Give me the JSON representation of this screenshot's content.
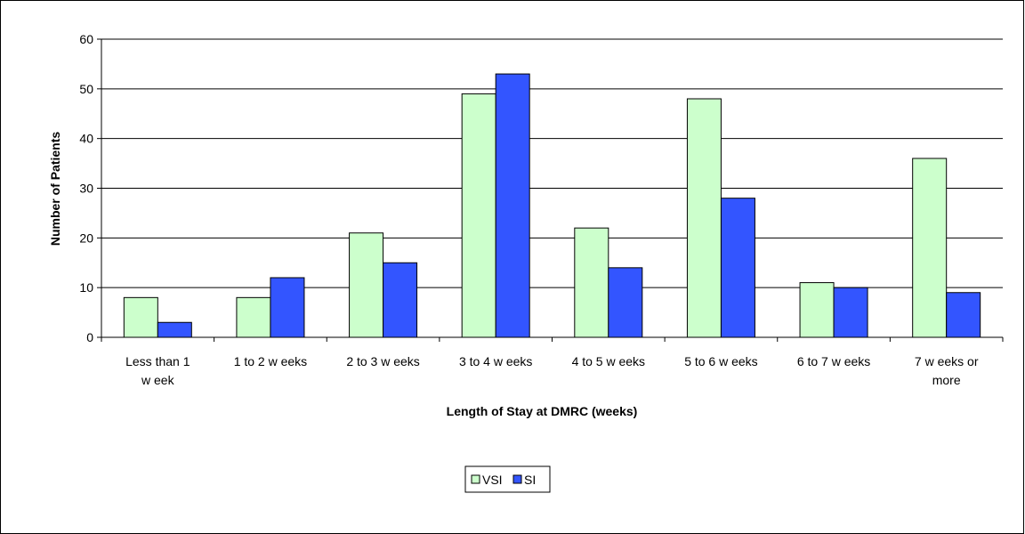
{
  "chart_data": {
    "type": "bar",
    "categories": [
      "Less than 1 w eek",
      "1 to 2 w eeks",
      "2 to 3 w eeks",
      "3 to 4 w eeks",
      "4 to 5 w eeks",
      "5 to 6 w eeks",
      "6 to 7 w eeks",
      "7 w eeks or more"
    ],
    "category_lines": [
      [
        "Less than 1",
        "w eek"
      ],
      [
        "1 to 2 w eeks"
      ],
      [
        "2 to 3 w eeks"
      ],
      [
        "3 to 4 w eeks"
      ],
      [
        "4 to 5 w eeks"
      ],
      [
        "5 to 6 w eeks"
      ],
      [
        "6 to 7 w eeks"
      ],
      [
        "7 w eeks or",
        "more"
      ]
    ],
    "series": [
      {
        "name": "VSI",
        "color": "#ccffcc",
        "values": [
          8,
          8,
          21,
          49,
          22,
          48,
          11,
          36
        ]
      },
      {
        "name": "SI",
        "color": "#3355ff",
        "values": [
          3,
          12,
          15,
          53,
          14,
          28,
          10,
          9
        ]
      }
    ],
    "xlabel": "Length of Stay at DMRC (weeks)",
    "ylabel": "Number of Patients",
    "ylim": [
      0,
      60
    ],
    "yticks": [
      0,
      10,
      20,
      30,
      40,
      50,
      60
    ],
    "grid": true,
    "legend": "bottom-center"
  }
}
